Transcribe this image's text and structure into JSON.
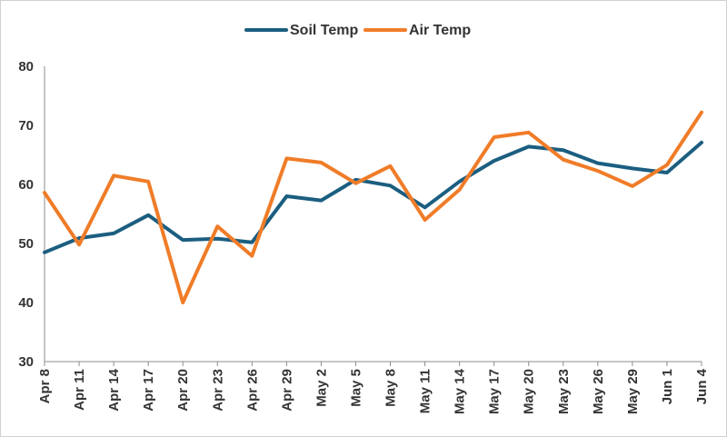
{
  "chart_data": {
    "type": "line",
    "title": "",
    "xlabel": "",
    "ylabel": "",
    "ylim": [
      30,
      80
    ],
    "yticks": [
      30,
      40,
      50,
      60,
      70,
      80
    ],
    "grid": false,
    "legend_position": "top-center",
    "categories": [
      "Apr 8",
      "Apr 11",
      "Apr 14",
      "Apr 17",
      "Apr 20",
      "Apr 23",
      "Apr 26",
      "Apr 29",
      "May 2",
      "May 5",
      "May 8",
      "May 11",
      "May 14",
      "May 17",
      "May 20",
      "May 23",
      "May 26",
      "May 29",
      "Jun 1",
      "Jun 4"
    ],
    "series": [
      {
        "name": "Soil Temp",
        "color": "#1b5e80",
        "values": [
          48.5,
          50.9,
          51.7,
          54.8,
          50.6,
          50.8,
          50.2,
          58.0,
          57.3,
          60.8,
          59.8,
          56.1,
          60.5,
          64.0,
          66.4,
          65.8,
          63.6,
          62.7,
          62.0,
          67.1
        ]
      },
      {
        "name": "Air Temp",
        "color": "#f07c28",
        "values": [
          58.6,
          49.8,
          61.5,
          60.5,
          40.0,
          52.9,
          47.9,
          64.4,
          63.7,
          60.2,
          63.1,
          54.0,
          59.1,
          68.0,
          68.8,
          64.2,
          62.3,
          59.7,
          63.3,
          72.2
        ]
      }
    ]
  }
}
